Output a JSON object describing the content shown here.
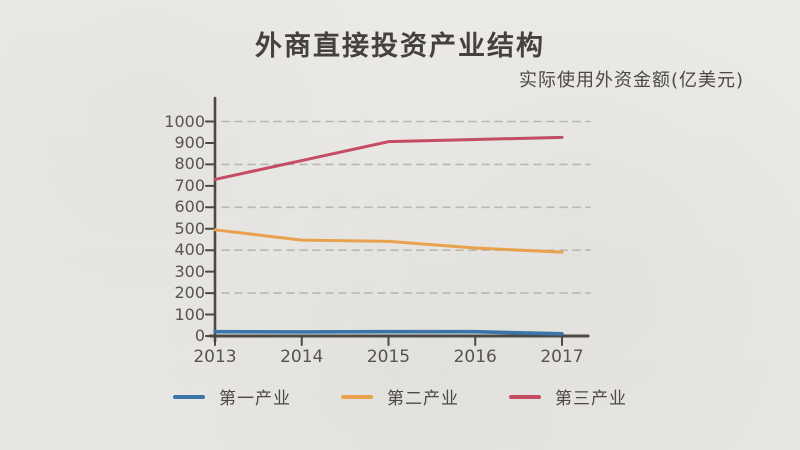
{
  "page": {
    "background_color": "#eae9e5",
    "text_color": "#4b4845",
    "axis_color": "#4b4845",
    "grid_color": "#b9b7b1"
  },
  "chart_data": {
    "type": "line",
    "title": "外商直接投资产业结构",
    "subtitle": "实际使用外资金额(亿美元)",
    "x": [
      2013,
      2014,
      2015,
      2016,
      2017
    ],
    "x_tick_labels": [
      "2013",
      "2014",
      "2015",
      "2016",
      "2017"
    ],
    "y_ticks": [
      0,
      100,
      200,
      300,
      400,
      500,
      600,
      700,
      800,
      900,
      1000
    ],
    "y_gridlines": [
      200,
      400,
      600,
      800,
      1000
    ],
    "ylim": [
      0,
      1000
    ],
    "xlabel": "",
    "ylabel": "",
    "grid": "horizontal dashed",
    "legend_position": "bottom-center",
    "series": [
      {
        "name": "第一产业",
        "color": "#3d74ab",
        "values": [
          20,
          19,
          20,
          20,
          10
        ]
      },
      {
        "name": "第二产业",
        "color": "#e8a24d",
        "values": [
          495,
          447,
          441,
          410,
          391
        ]
      },
      {
        "name": "第三产业",
        "color": "#c44d64",
        "values": [
          730,
          818,
          906,
          916,
          926
        ]
      }
    ]
  }
}
